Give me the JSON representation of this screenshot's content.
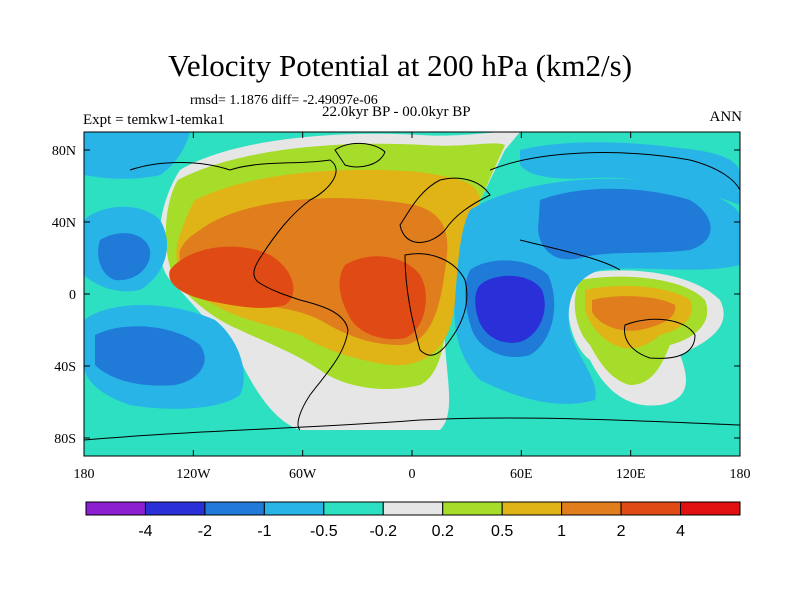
{
  "chart_data": {
    "type": "heatmap",
    "title": "Velocity Potential at 200 hPa (km2/s)",
    "stats": "rmsd= 1.1876 diff= -2.49097e-06",
    "experiment": "Expt = temkw1-temka1",
    "period": "22.0kyr BP - 00.0kyr BP",
    "season": "ANN",
    "x_ticks": [
      "180",
      "120W",
      "60W",
      "0",
      "60E",
      "120E",
      "180"
    ],
    "x_values": [
      -180,
      -120,
      -60,
      0,
      60,
      120,
      180
    ],
    "y_ticks": [
      "80N",
      "40N",
      "0",
      "40S",
      "80S"
    ],
    "y_values": [
      80,
      40,
      0,
      -40,
      -80
    ],
    "xlim": [
      -180,
      180
    ],
    "ylim": [
      -90,
      90
    ],
    "colorbar": {
      "labels": [
        "-4",
        "-2",
        "-1",
        "-0.5",
        "-0.2",
        "0.2",
        "0.5",
        "1",
        "2",
        "4"
      ],
      "colors": [
        "#8c1fd0",
        "#2a2fd8",
        "#1f7ad8",
        "#29b4e8",
        "#2ee0c2",
        "#e6e6e6",
        "#a6dc2a",
        "#e0b416",
        "#e07d1c",
        "#e04a14",
        "#e01010"
      ]
    },
    "features": [
      {
        "name": "pacific-positive-core",
        "value": 4
      },
      {
        "name": "atlantic-positive-core",
        "value": 3
      },
      {
        "name": "indian-ocean-negative-core",
        "value": -3
      },
      {
        "name": "maritime-continent-positive",
        "value": 2
      }
    ]
  }
}
